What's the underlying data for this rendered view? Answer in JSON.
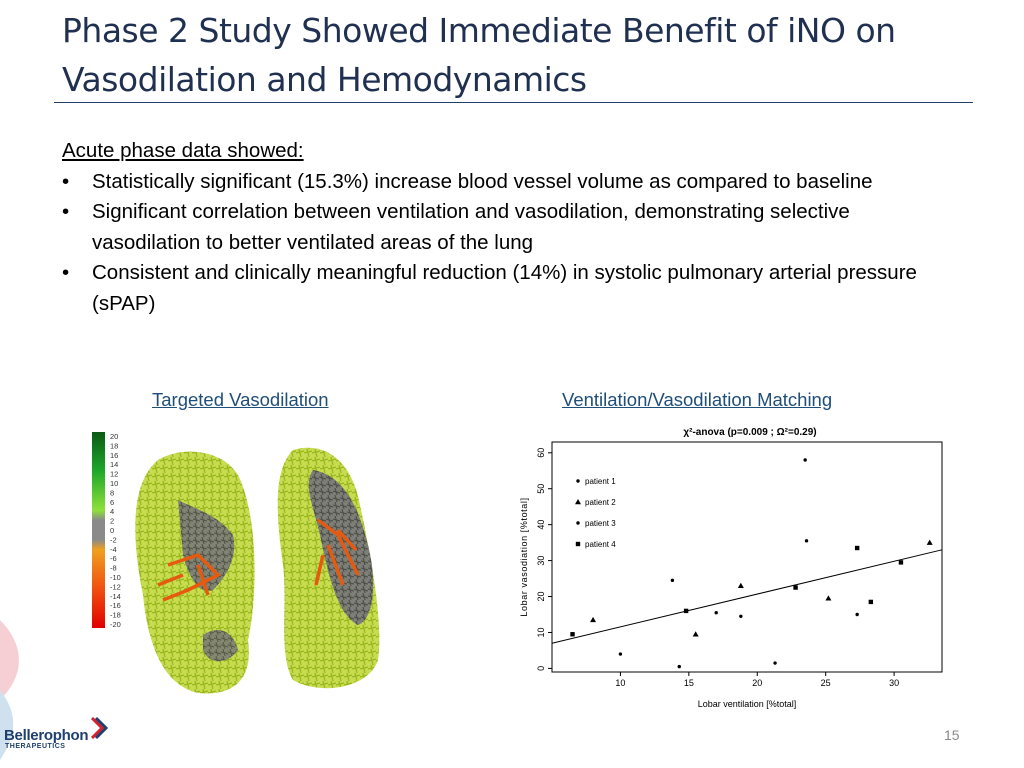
{
  "title": "Phase 2 Study Showed Immediate Benefit of iNO on Vasodilation and Hemodynamics",
  "content": {
    "heading": "Acute phase data showed:",
    "bullet_glyph": "•",
    "bullets": [
      "Statistically significant (15.3%) increase blood vessel volume as compared to baseline",
      "Significant correlation between ventilation and vasodilation, demonstrating selective vasodilation to better ventilated areas of the lung",
      "Consistent and clinically meaningful reduction (14%) in systolic pulmonary arterial pressure (sPAP)"
    ]
  },
  "figures": {
    "left_caption": "Targeted Vasodilation",
    "right_caption": "Ventilation/Vasodilation Matching",
    "color_scale_labels": [
      "20",
      "18",
      "16",
      "14",
      "12",
      "10",
      "8",
      "6",
      "4",
      "2",
      "0",
      "-2",
      "-4",
      "-6",
      "-8",
      "-10",
      "-12",
      "-14",
      "-16",
      "-18",
      "-20"
    ]
  },
  "chart_data": {
    "type": "scatter",
    "title": "χ²-anova (p=0.009 ; Ω²=0.29)",
    "xlabel": "Lobar ventilation [%total]",
    "ylabel": "Lobar vasodiation [%total]",
    "xlim": [
      5,
      33.5
    ],
    "ylim": [
      -1,
      63
    ],
    "xticks": [
      10,
      15,
      20,
      25,
      30
    ],
    "yticks": [
      0,
      10,
      20,
      30,
      40,
      50,
      60
    ],
    "legend_position": "top-left",
    "series": [
      {
        "name": "patient 1",
        "marker": "dot",
        "x": [
          10,
          13.8,
          14.3,
          18.8,
          21.3,
          23.5,
          23.6,
          27.3
        ],
        "y": [
          4,
          24.5,
          0.5,
          14.5,
          1.5,
          58,
          35.5,
          15
        ]
      },
      {
        "name": "patient 2",
        "marker": "triangle",
        "x": [
          8,
          15.5,
          18.8,
          25.2,
          32.6
        ],
        "y": [
          13.5,
          9.5,
          23,
          19.5,
          35
        ]
      },
      {
        "name": "patient 3",
        "marker": "dot",
        "x": [
          17
        ],
        "y": [
          15.5
        ]
      },
      {
        "name": "patient 4",
        "marker": "square",
        "x": [
          6.5,
          14.8,
          22.8,
          27.3,
          28.3,
          30.5
        ],
        "y": [
          9.5,
          16,
          22.5,
          33.5,
          18.5,
          29.5
        ]
      }
    ],
    "regression_line": {
      "x": [
        5,
        33.5
      ],
      "y": [
        7,
        33
      ]
    }
  },
  "page_number": "15",
  "logo": {
    "name": "Bellerophon",
    "sub": "THERAPEUTICS"
  }
}
